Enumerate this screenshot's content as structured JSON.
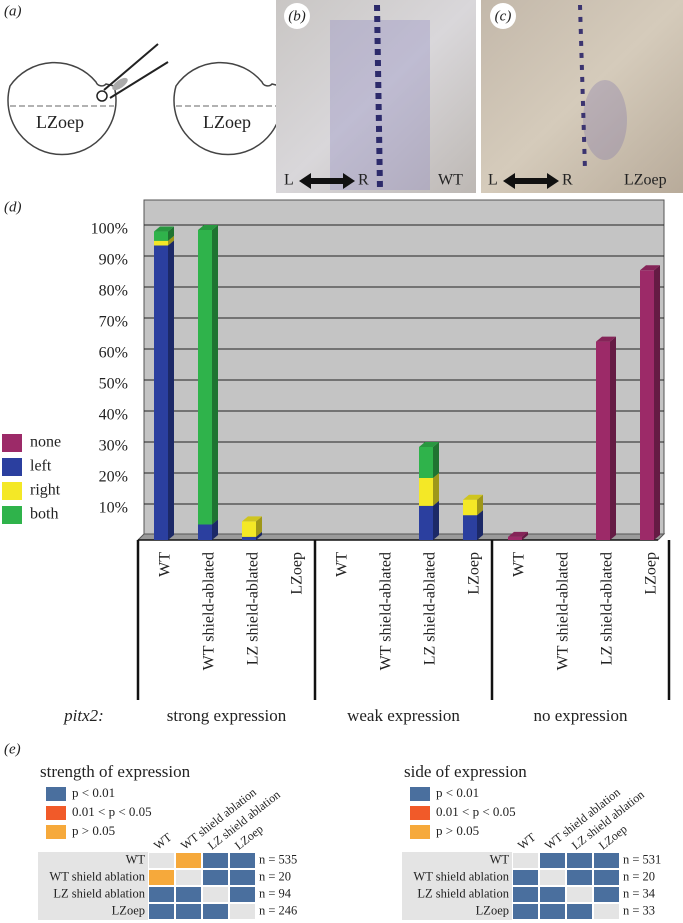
{
  "panel_a": {
    "label": "(a)",
    "left_embryo": "LZoep",
    "right_embryo": "LZoep"
  },
  "panel_b": {
    "label": "(b)",
    "left": "L",
    "right": "R",
    "genotype": "WT"
  },
  "panel_c": {
    "label": "(c)",
    "left": "L",
    "right": "R",
    "genotype": "LZoep"
  },
  "chart_data": {
    "type": "bar",
    "stacked": true,
    "three_d": true,
    "grid": true,
    "legend": "left",
    "panel_label": "(d)",
    "categories": [
      "WT",
      "WT shield-ablated",
      "LZ shield-ablated",
      "LZoep",
      "WT",
      "WT shield-ablated",
      "LZ shield-ablated",
      "LZoep",
      "WT",
      "WT shield-ablated",
      "LZ shield-ablated",
      "LZoep"
    ],
    "category_groups": [
      "strong expression",
      "weak expression",
      "no expression"
    ],
    "group_prefix": "pitx2:",
    "series": [
      {
        "name": "none",
        "color": "#9c2a68",
        "values": [
          0,
          0,
          0,
          0,
          0,
          0,
          0,
          0,
          1,
          0,
          64,
          87
        ]
      },
      {
        "name": "left",
        "color": "#2b3f9f",
        "values": [
          95,
          5,
          1,
          0,
          0,
          0,
          11,
          8,
          0,
          0,
          0,
          0
        ]
      },
      {
        "name": "right",
        "color": "#f4e826",
        "values": [
          1.5,
          0,
          5,
          0,
          0,
          0,
          9,
          5,
          0,
          0,
          0,
          0
        ]
      },
      {
        "name": "both",
        "color": "#2fb34b",
        "values": [
          3,
          95,
          0,
          0,
          0,
          0,
          10,
          0,
          0,
          0,
          0,
          0
        ]
      }
    ],
    "ylim": [
      0,
      100
    ],
    "yticks": [
      {
        "value": 10,
        "label": "10%"
      },
      {
        "value": 20,
        "label": "20%"
      },
      {
        "value": 30,
        "label": "30%"
      },
      {
        "value": 40,
        "label": "40%"
      },
      {
        "value": 50,
        "label": "50%"
      },
      {
        "value": 60,
        "label": "60%"
      },
      {
        "value": 70,
        "label": "70%"
      },
      {
        "value": 80,
        "label": "80%"
      },
      {
        "value": 90,
        "label": "90%"
      },
      {
        "value": 100,
        "label": "100%"
      }
    ]
  },
  "panel_e": {
    "label": "(e)",
    "matrices": [
      {
        "title": "strength of expression",
        "legend": [
          {
            "label": "p < 0.01",
            "color": "#4a6f9e"
          },
          {
            "label": "0.01 < p < 0.05",
            "color": "#f15a29"
          },
          {
            "label": "p > 0.05",
            "color": "#f6a93b"
          }
        ],
        "columns": [
          "WT",
          "WT shield ablation",
          "LZ shield ablation",
          "LZoep"
        ],
        "rows": [
          {
            "label": "WT",
            "n": "n = 535",
            "cells": [
              null,
              2,
              0,
              0
            ]
          },
          {
            "label": "WT shield ablation",
            "n": "n = 20",
            "cells": [
              2,
              null,
              0,
              0
            ]
          },
          {
            "label": "LZ shield ablation",
            "n": "n = 94",
            "cells": [
              0,
              0,
              null,
              0
            ]
          },
          {
            "label": "LZoep",
            "n": "n = 246",
            "cells": [
              0,
              0,
              0,
              null
            ]
          }
        ]
      },
      {
        "title": "side of expression",
        "legend": [
          {
            "label": "p < 0.01",
            "color": "#4a6f9e"
          },
          {
            "label": "0.01 < p < 0.05",
            "color": "#f15a29"
          },
          {
            "label": "p > 0.05",
            "color": "#f6a93b"
          }
        ],
        "columns": [
          "WT",
          "WT shield ablation",
          "LZ shield ablation",
          "LZoep"
        ],
        "rows": [
          {
            "label": "WT",
            "n": "n = 531",
            "cells": [
              null,
              0,
              0,
              0
            ]
          },
          {
            "label": "WT shield ablation",
            "n": "n = 20",
            "cells": [
              0,
              null,
              0,
              0
            ]
          },
          {
            "label": "LZ shield ablation",
            "n": "n = 34",
            "cells": [
              0,
              0,
              null,
              0
            ]
          },
          {
            "label": "LZoep",
            "n": "n = 33",
            "cells": [
              0,
              0,
              0,
              null
            ]
          }
        ]
      }
    ]
  }
}
